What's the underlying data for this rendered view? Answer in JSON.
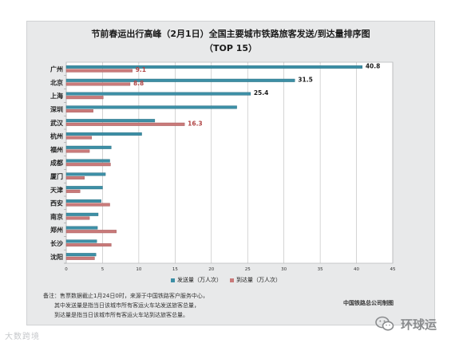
{
  "chart_data": {
    "type": "bar",
    "orientation": "horizontal",
    "title": "节前春运出行高峰（2月1日）全国主要城市铁路旅客发送/到达量排序图",
    "subtitle": "（TOP 15）",
    "categories": [
      "广州",
      "北京",
      "上海",
      "深圳",
      "武汉",
      "杭州",
      "福州",
      "成都",
      "厦门",
      "天津",
      "西安",
      "南京",
      "郑州",
      "长沙",
      "沈阳"
    ],
    "series": [
      {
        "name": "发送量（万人次）",
        "color": "#3d8fa6",
        "values": [
          40.8,
          31.5,
          25.4,
          23.5,
          12.2,
          10.4,
          6.2,
          6.0,
          5.4,
          5.0,
          4.8,
          4.4,
          4.3,
          4.2,
          4.1
        ]
      },
      {
        "name": "到达量（万人次）",
        "color": "#c97a7a",
        "values": [
          9.1,
          8.8,
          5.1,
          3.7,
          16.3,
          3.5,
          3.2,
          6.1,
          2.5,
          1.9,
          6.0,
          3.2,
          6.9,
          6.2,
          3.9
        ]
      }
    ],
    "data_labels": [
      {
        "category": "广州",
        "series": 0,
        "text": "40.8"
      },
      {
        "category": "广州",
        "series": 1,
        "text": "9.1"
      },
      {
        "category": "北京",
        "series": 0,
        "text": "31.5"
      },
      {
        "category": "北京",
        "series": 1,
        "text": "8.8"
      },
      {
        "category": "上海",
        "series": 0,
        "text": "25.4"
      },
      {
        "category": "武汉",
        "series": 1,
        "text": "16.3"
      }
    ],
    "xlim": [
      0,
      45
    ],
    "xticks": [
      0,
      5,
      10,
      15,
      20,
      25,
      30,
      35,
      40,
      45
    ],
    "grid": true,
    "legend_position": "bottom"
  },
  "note_lines": [
    "备注：售票数据截止1月24日0时，来源于中国铁路客户服务中心，",
    "其中发送量是指当日该城市所有客运火车站发送旅客总量，",
    "到达量是指当日该城市所有客运火车站到达旅客总量。"
  ],
  "source": "中国铁路总公司制图",
  "watermark_left": "大数跨境",
  "watermark_right": "环球运"
}
